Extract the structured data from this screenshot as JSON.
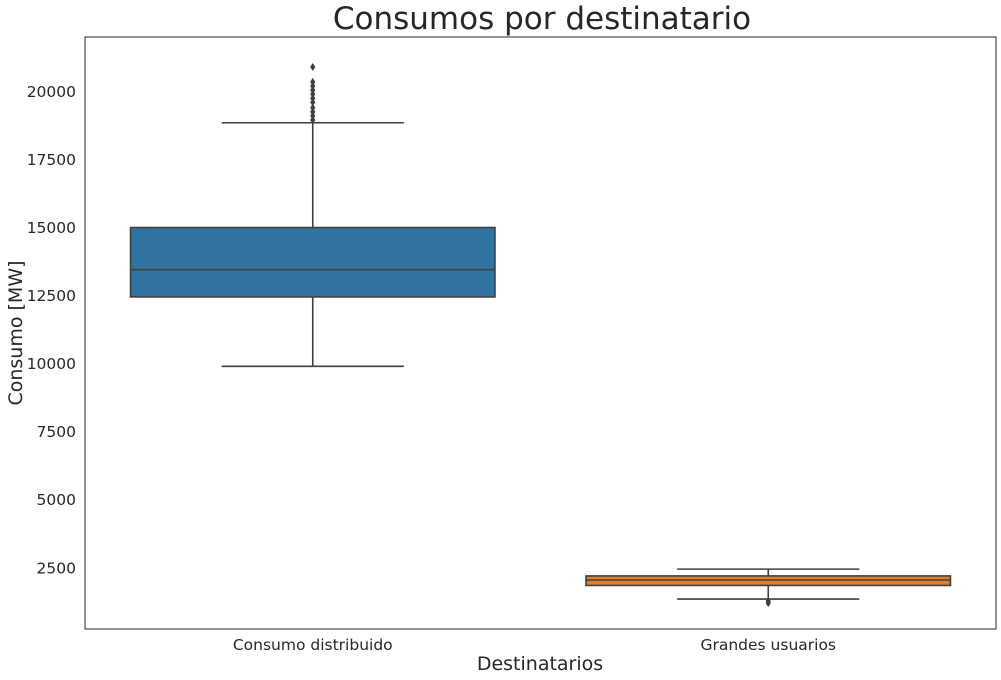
{
  "chart_data": {
    "type": "box",
    "title": "Consumos por destinatario",
    "xlabel": "Destinatarios",
    "ylabel": "Consumo [MW]",
    "ylim": [
      250,
      22000
    ],
    "yticks": [
      2500,
      5000,
      7500,
      10000,
      12500,
      15000,
      17500,
      20000
    ],
    "categories": [
      "Consumo distribuido",
      "Grandes usuarios"
    ],
    "colors": [
      "#3274a1",
      "#e1812c"
    ],
    "grid": false,
    "boxes": [
      {
        "category": "Consumo distribuido",
        "whisker_low": 9900,
        "q1": 12450,
        "median": 13450,
        "q3": 15000,
        "whisker_high": 18850,
        "outliers": [
          18950,
          19100,
          19250,
          19400,
          19600,
          19750,
          19900,
          20050,
          20200,
          20350,
          20900
        ]
      },
      {
        "category": "Grandes usuarios",
        "whisker_low": 1350,
        "q1": 1850,
        "median": 2050,
        "q3": 2200,
        "whisker_high": 2450,
        "outliers": [
          1200,
          1280
        ]
      }
    ]
  }
}
